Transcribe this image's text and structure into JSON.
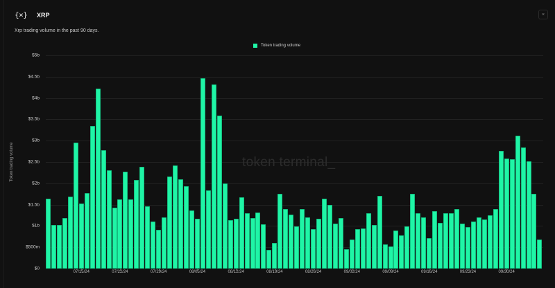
{
  "header": {
    "logo_glyph": "{×}",
    "title": "XRP",
    "subtitle": "Xrp trading volume in the past 90 days.",
    "close_icon": "×"
  },
  "watermark": "token terminal_",
  "colors": {
    "bar": "#1ff5a6",
    "background": "#111111",
    "grid": "#222222"
  },
  "chart_data": {
    "type": "bar",
    "title": "XRP",
    "subtitle": "Xrp trading volume in the past 90 days.",
    "xlabel": "",
    "ylabel": "Token trading volume",
    "legend": [
      "Token trading volume"
    ],
    "legend_position": "top-center",
    "grid": true,
    "ylim": [
      0,
      5000000000
    ],
    "yticks": [
      "$0",
      "$500m",
      "$1b",
      "$1.5b",
      "$2b",
      "$2.5b",
      "$3b",
      "$3.5b",
      "$4b",
      "$4.5b",
      "$5b"
    ],
    "xticks": [
      "07/15/24",
      "07/22/24",
      "07/29/24",
      "08/05/24",
      "08/12/24",
      "08/19/24",
      "08/26/24",
      "09/02/24",
      "09/09/24",
      "09/16/24",
      "09/23/24",
      "09/30/24"
    ],
    "series": [
      {
        "name": "Token trading volume",
        "unit": "USD billions",
        "values": [
          1.64,
          1.02,
          1.02,
          1.18,
          1.69,
          2.95,
          1.53,
          1.77,
          3.34,
          4.22,
          2.78,
          2.31,
          1.43,
          1.62,
          2.27,
          1.62,
          2.08,
          2.39,
          1.46,
          1.1,
          0.91,
          1.2,
          2.16,
          2.42,
          2.09,
          1.93,
          1.36,
          1.17,
          4.46,
          1.83,
          4.32,
          3.59,
          2.0,
          1.14,
          1.17,
          1.67,
          1.3,
          1.18,
          1.31,
          1.04,
          0.44,
          0.6,
          1.75,
          1.4,
          1.27,
          0.99,
          1.4,
          1.2,
          0.93,
          1.17,
          1.64,
          1.49,
          1.06,
          1.18,
          0.45,
          0.68,
          0.93,
          0.94,
          1.3,
          1.02,
          1.7,
          0.57,
          0.52,
          0.89,
          0.78,
          0.99,
          1.75,
          1.3,
          1.2,
          0.71,
          1.35,
          1.07,
          1.3,
          1.3,
          1.4,
          1.06,
          0.97,
          1.1,
          1.2,
          1.15,
          1.25,
          1.4,
          2.76,
          2.58,
          2.56,
          3.12,
          2.84,
          2.52,
          1.75,
          0.68
        ]
      }
    ]
  }
}
